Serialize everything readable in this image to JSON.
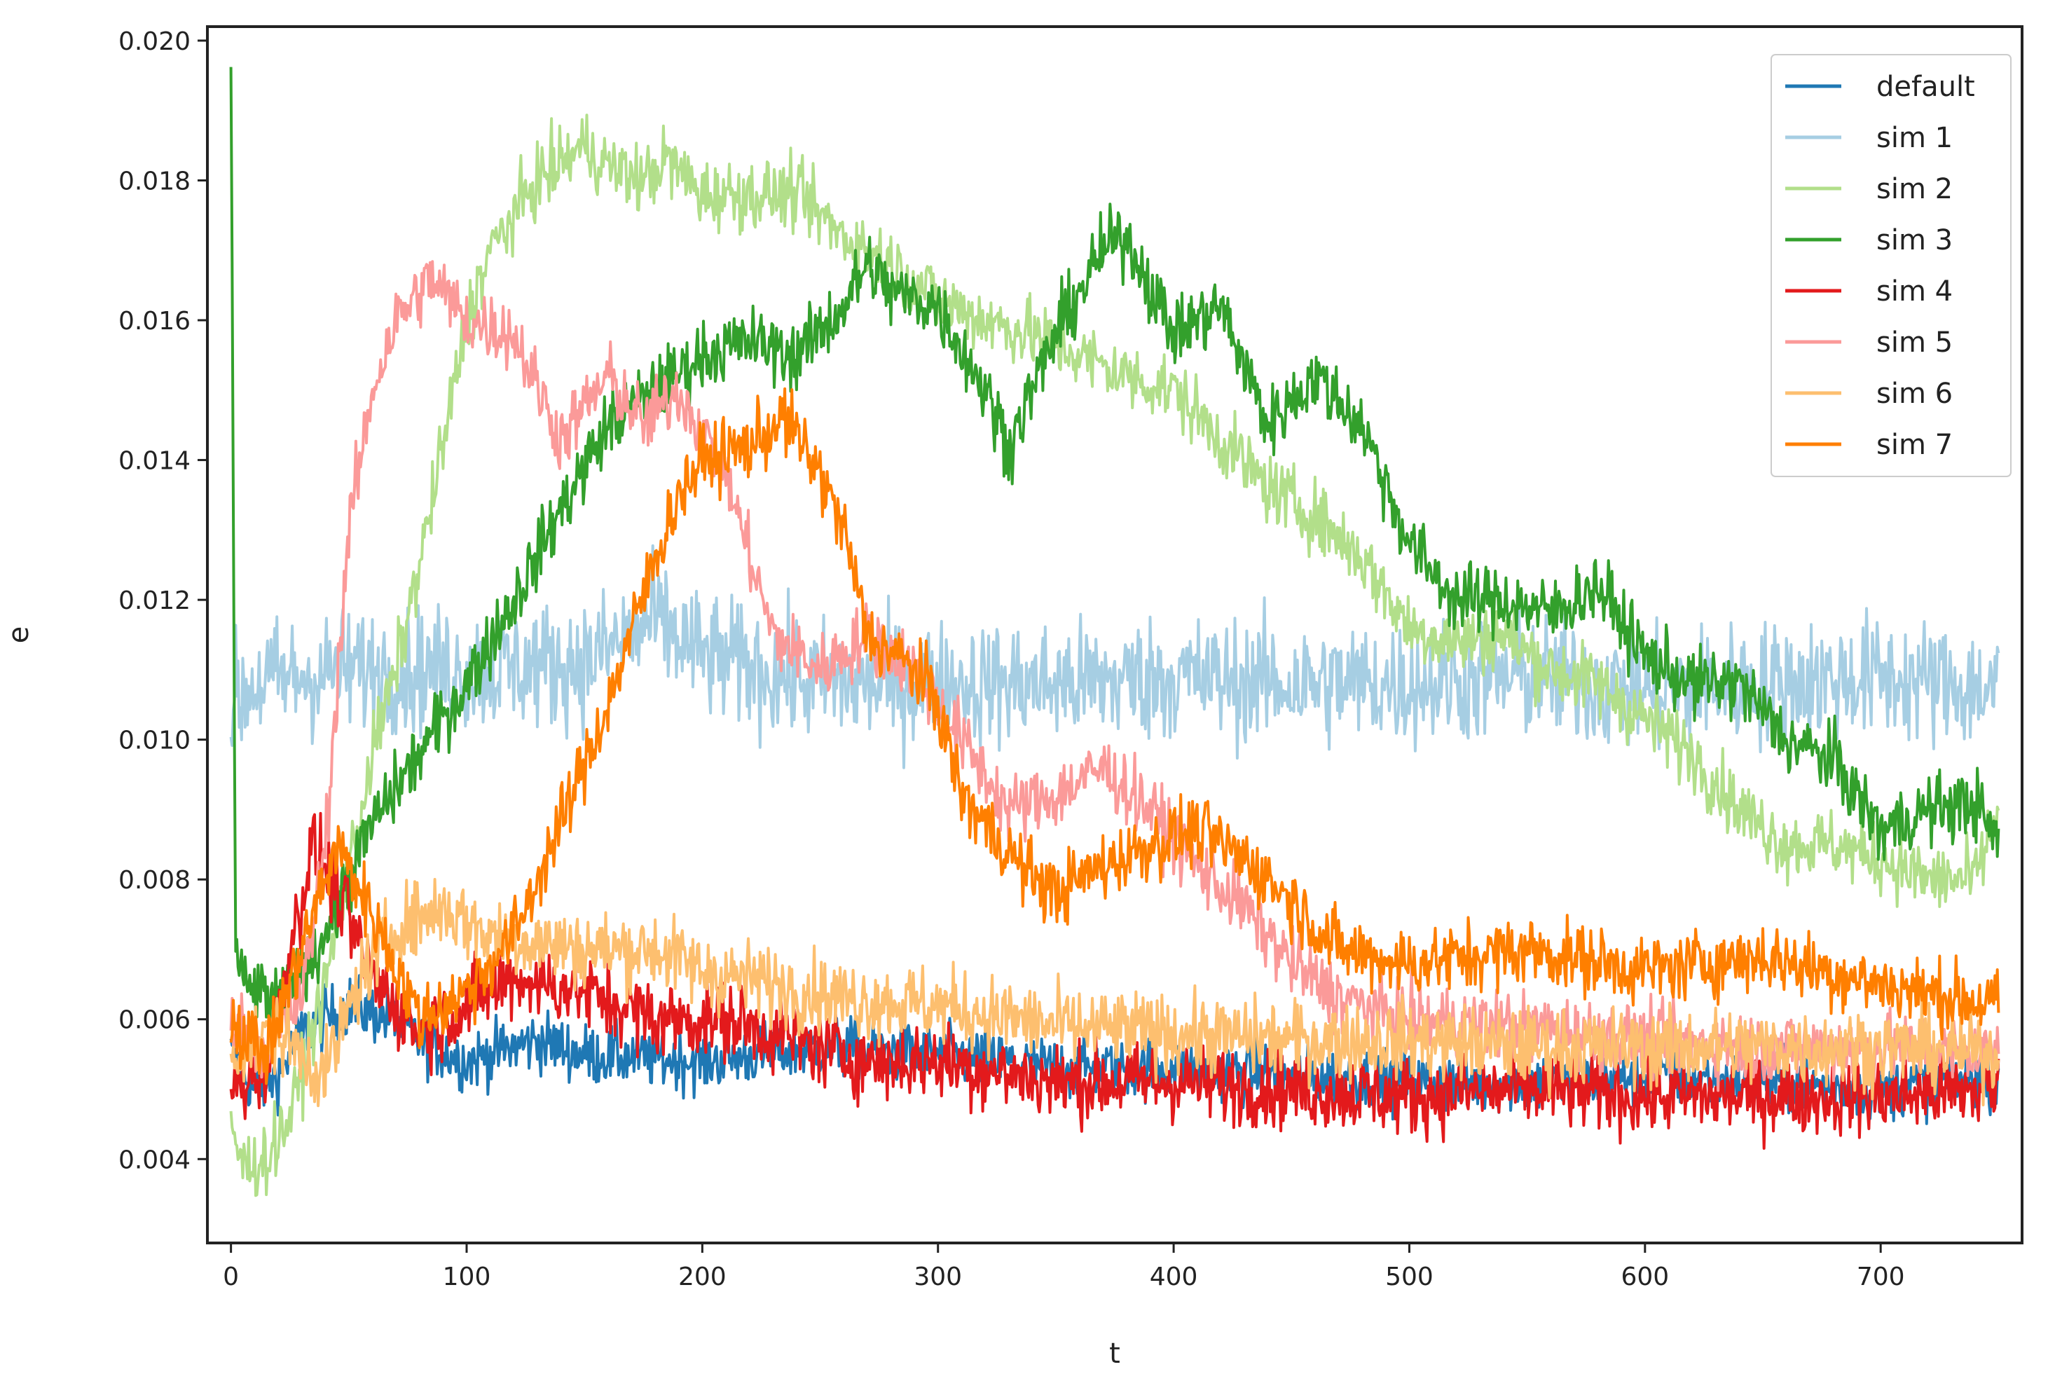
{
  "chart_data": {
    "type": "line",
    "title": "",
    "xlabel": "t",
    "ylabel": "e",
    "xlim": [
      -10,
      760
    ],
    "ylim": [
      0.0028,
      0.0202
    ],
    "xticks": [
      0,
      100,
      200,
      300,
      400,
      500,
      600,
      700
    ],
    "xtick_labels": [
      "0",
      "100",
      "200",
      "300",
      "400",
      "500",
      "600",
      "700"
    ],
    "yticks": [
      0.004,
      0.006,
      0.008,
      0.01,
      0.012,
      0.014,
      0.016,
      0.018,
      0.02
    ],
    "ytick_labels": [
      "0.004",
      "0.006",
      "0.008",
      "0.010",
      "0.012",
      "0.014",
      "0.016",
      "0.018",
      "0.020"
    ],
    "grid": false,
    "legend_position": "top-right",
    "x_range": [
      0,
      750
    ],
    "series": [
      {
        "name": "default",
        "color": "#1f78b4",
        "noise": 0.00022,
        "points": [
          [
            0,
            0.0055
          ],
          [
            10,
            0.005
          ],
          [
            20,
            0.0052
          ],
          [
            30,
            0.0058
          ],
          [
            40,
            0.006
          ],
          [
            50,
            0.0062
          ],
          [
            60,
            0.0061
          ],
          [
            70,
            0.006
          ],
          [
            80,
            0.0057
          ],
          [
            100,
            0.0054
          ],
          [
            130,
            0.0057
          ],
          [
            150,
            0.0055
          ],
          [
            200,
            0.0054
          ],
          [
            250,
            0.0056
          ],
          [
            300,
            0.0055
          ],
          [
            350,
            0.0053
          ],
          [
            400,
            0.0053
          ],
          [
            450,
            0.0052
          ],
          [
            500,
            0.0051
          ],
          [
            550,
            0.0051
          ],
          [
            600,
            0.0052
          ],
          [
            650,
            0.0051
          ],
          [
            700,
            0.005
          ],
          [
            750,
            0.0052
          ]
        ]
      },
      {
        "name": "sim 1",
        "color": "#a6cee3",
        "noise": 0.00045,
        "points": [
          [
            0,
            0.0105
          ],
          [
            10,
            0.0108
          ],
          [
            50,
            0.011
          ],
          [
            100,
            0.011
          ],
          [
            150,
            0.0111
          ],
          [
            180,
            0.0117
          ],
          [
            200,
            0.0112
          ],
          [
            250,
            0.0108
          ],
          [
            300,
            0.0108
          ],
          [
            350,
            0.0108
          ],
          [
            400,
            0.0109
          ],
          [
            450,
            0.0108
          ],
          [
            500,
            0.0108
          ],
          [
            550,
            0.0109
          ],
          [
            600,
            0.0107
          ],
          [
            650,
            0.0108
          ],
          [
            700,
            0.0109
          ],
          [
            750,
            0.0107
          ]
        ]
      },
      {
        "name": "sim 2",
        "color": "#b2df8a",
        "noise": 0.00025,
        "points": [
          [
            0,
            0.0045
          ],
          [
            5,
            0.0039
          ],
          [
            15,
            0.004
          ],
          [
            25,
            0.0046
          ],
          [
            40,
            0.0065
          ],
          [
            60,
            0.0098
          ],
          [
            70,
            0.011
          ],
          [
            80,
            0.0125
          ],
          [
            90,
            0.0142
          ],
          [
            100,
            0.016
          ],
          [
            110,
            0.017
          ],
          [
            130,
            0.018
          ],
          [
            150,
            0.0185
          ],
          [
            160,
            0.0182
          ],
          [
            175,
            0.018
          ],
          [
            185,
            0.0183
          ],
          [
            200,
            0.0178
          ],
          [
            220,
            0.0178
          ],
          [
            240,
            0.0178
          ],
          [
            260,
            0.0172
          ],
          [
            280,
            0.0168
          ],
          [
            300,
            0.0163
          ],
          [
            320,
            0.016
          ],
          [
            340,
            0.0158
          ],
          [
            360,
            0.0155
          ],
          [
            380,
            0.0152
          ],
          [
            400,
            0.015
          ],
          [
            420,
            0.0143
          ],
          [
            440,
            0.0136
          ],
          [
            460,
            0.0132
          ],
          [
            480,
            0.0126
          ],
          [
            500,
            0.0116
          ],
          [
            520,
            0.0114
          ],
          [
            540,
            0.0115
          ],
          [
            560,
            0.011
          ],
          [
            580,
            0.0108
          ],
          [
            600,
            0.0103
          ],
          [
            620,
            0.0098
          ],
          [
            640,
            0.009
          ],
          [
            660,
            0.0085
          ],
          [
            680,
            0.0085
          ],
          [
            700,
            0.0083
          ],
          [
            720,
            0.008
          ],
          [
            740,
            0.008
          ],
          [
            750,
            0.009
          ]
        ]
      },
      {
        "name": "sim 3",
        "color": "#33a02c",
        "noise": 0.00025,
        "points": [
          [
            0,
            0.0196
          ],
          [
            2,
            0.007
          ],
          [
            5,
            0.0065
          ],
          [
            20,
            0.0062
          ],
          [
            40,
            0.0072
          ],
          [
            60,
            0.0088
          ],
          [
            80,
            0.0098
          ],
          [
            100,
            0.0108
          ],
          [
            120,
            0.012
          ],
          [
            140,
            0.0133
          ],
          [
            160,
            0.0145
          ],
          [
            180,
            0.015
          ],
          [
            200,
            0.0155
          ],
          [
            220,
            0.0157
          ],
          [
            240,
            0.0155
          ],
          [
            260,
            0.0162
          ],
          [
            270,
            0.0168
          ],
          [
            280,
            0.0164
          ],
          [
            300,
            0.0162
          ],
          [
            320,
            0.015
          ],
          [
            330,
            0.0142
          ],
          [
            350,
            0.0158
          ],
          [
            370,
            0.017
          ],
          [
            380,
            0.0172
          ],
          [
            400,
            0.0158
          ],
          [
            420,
            0.0162
          ],
          [
            440,
            0.0145
          ],
          [
            460,
            0.0152
          ],
          [
            480,
            0.0145
          ],
          [
            500,
            0.0128
          ],
          [
            520,
            0.012
          ],
          [
            540,
            0.012
          ],
          [
            560,
            0.0118
          ],
          [
            580,
            0.0122
          ],
          [
            600,
            0.0112
          ],
          [
            620,
            0.0108
          ],
          [
            640,
            0.0108
          ],
          [
            660,
            0.01
          ],
          [
            680,
            0.0097
          ],
          [
            700,
            0.0087
          ],
          [
            720,
            0.009
          ],
          [
            740,
            0.0091
          ],
          [
            750,
            0.0085
          ]
        ]
      },
      {
        "name": "sim 4",
        "color": "#e31a1c",
        "noise": 0.00028,
        "points": [
          [
            0,
            0.005
          ],
          [
            15,
            0.0053
          ],
          [
            25,
            0.007
          ],
          [
            35,
            0.0085
          ],
          [
            45,
            0.0078
          ],
          [
            60,
            0.0066
          ],
          [
            80,
            0.0058
          ],
          [
            100,
            0.0062
          ],
          [
            120,
            0.0066
          ],
          [
            150,
            0.0064
          ],
          [
            180,
            0.006
          ],
          [
            210,
            0.006
          ],
          [
            240,
            0.0057
          ],
          [
            270,
            0.0054
          ],
          [
            300,
            0.0054
          ],
          [
            350,
            0.0051
          ],
          [
            400,
            0.0051
          ],
          [
            450,
            0.005
          ],
          [
            500,
            0.0049
          ],
          [
            550,
            0.005
          ],
          [
            600,
            0.0049
          ],
          [
            650,
            0.0049
          ],
          [
            700,
            0.0049
          ],
          [
            750,
            0.005
          ]
        ]
      },
      {
        "name": "sim 5",
        "color": "#fb9a99",
        "noise": 0.00025,
        "points": [
          [
            0,
            0.006
          ],
          [
            15,
            0.0056
          ],
          [
            30,
            0.0063
          ],
          [
            40,
            0.0085
          ],
          [
            50,
            0.013
          ],
          [
            60,
            0.015
          ],
          [
            70,
            0.016
          ],
          [
            85,
            0.0166
          ],
          [
            100,
            0.016
          ],
          [
            120,
            0.0158
          ],
          [
            140,
            0.0143
          ],
          [
            160,
            0.0152
          ],
          [
            175,
            0.0145
          ],
          [
            190,
            0.015
          ],
          [
            210,
            0.0138
          ],
          [
            230,
            0.0115
          ],
          [
            250,
            0.011
          ],
          [
            270,
            0.0115
          ],
          [
            290,
            0.011
          ],
          [
            310,
            0.01
          ],
          [
            330,
            0.009
          ],
          [
            350,
            0.0092
          ],
          [
            370,
            0.0096
          ],
          [
            390,
            0.009
          ],
          [
            410,
            0.0082
          ],
          [
            430,
            0.0076
          ],
          [
            450,
            0.0068
          ],
          [
            470,
            0.0063
          ],
          [
            500,
            0.006
          ],
          [
            550,
            0.0059
          ],
          [
            600,
            0.0057
          ],
          [
            650,
            0.0056
          ],
          [
            700,
            0.0056
          ],
          [
            750,
            0.0055
          ]
        ]
      },
      {
        "name": "sim 6",
        "color": "#fdbf6f",
        "noise": 0.00028,
        "points": [
          [
            0,
            0.0055
          ],
          [
            20,
            0.0058
          ],
          [
            40,
            0.0052
          ],
          [
            55,
            0.0066
          ],
          [
            70,
            0.0073
          ],
          [
            90,
            0.0076
          ],
          [
            110,
            0.0072
          ],
          [
            130,
            0.0071
          ],
          [
            150,
            0.007
          ],
          [
            180,
            0.007
          ],
          [
            200,
            0.0067
          ],
          [
            230,
            0.0065
          ],
          [
            260,
            0.0063
          ],
          [
            300,
            0.0062
          ],
          [
            350,
            0.0059
          ],
          [
            400,
            0.0058
          ],
          [
            450,
            0.0057
          ],
          [
            500,
            0.0057
          ],
          [
            550,
            0.0056
          ],
          [
            600,
            0.0056
          ],
          [
            650,
            0.0056
          ],
          [
            700,
            0.0056
          ],
          [
            750,
            0.0055
          ]
        ]
      },
      {
        "name": "sim 7",
        "color": "#ff7f00",
        "noise": 0.00025,
        "points": [
          [
            0,
            0.006
          ],
          [
            15,
            0.0055
          ],
          [
            30,
            0.007
          ],
          [
            45,
            0.0085
          ],
          [
            60,
            0.0075
          ],
          [
            80,
            0.006
          ],
          [
            100,
            0.0064
          ],
          [
            120,
            0.0072
          ],
          [
            140,
            0.0088
          ],
          [
            160,
            0.0105
          ],
          [
            180,
            0.0126
          ],
          [
            190,
            0.0135
          ],
          [
            200,
            0.014
          ],
          [
            220,
            0.0142
          ],
          [
            235,
            0.0146
          ],
          [
            250,
            0.0138
          ],
          [
            260,
            0.013
          ],
          [
            270,
            0.0115
          ],
          [
            290,
            0.011
          ],
          [
            300,
            0.0105
          ],
          [
            310,
            0.0092
          ],
          [
            320,
            0.0088
          ],
          [
            335,
            0.0082
          ],
          [
            350,
            0.0078
          ],
          [
            370,
            0.0082
          ],
          [
            390,
            0.0085
          ],
          [
            410,
            0.0087
          ],
          [
            430,
            0.0083
          ],
          [
            450,
            0.0077
          ],
          [
            470,
            0.007
          ],
          [
            500,
            0.0068
          ],
          [
            550,
            0.007
          ],
          [
            600,
            0.0067
          ],
          [
            650,
            0.0069
          ],
          [
            700,
            0.0065
          ],
          [
            750,
            0.0062
          ]
        ]
      }
    ]
  }
}
